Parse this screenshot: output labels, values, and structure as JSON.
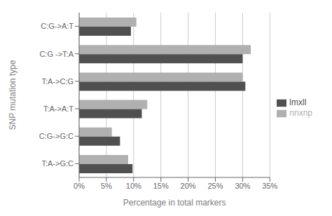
{
  "chart_data": {
    "type": "bar",
    "orientation": "horizontal",
    "categories": [
      "C:G->A:T",
      "C:G ->T:A",
      "T:A->C:G",
      "T:A->A:T",
      "C:G->G:C",
      "T:A->G:C"
    ],
    "series": [
      {
        "name": "nnxnp",
        "color": "#b0b0b0",
        "values": [
          10.5,
          31.5,
          30.0,
          12.5,
          6.0,
          9.0
        ]
      },
      {
        "name": "lmxll",
        "color": "#505050",
        "values": [
          9.5,
          30.0,
          30.5,
          11.5,
          7.5,
          9.8
        ]
      }
    ],
    "xlabel": "Percentage in total markers",
    "ylabel": "SNP mutation type",
    "xlim": [
      0,
      35
    ],
    "xticks": [
      {
        "value": 0,
        "label": "0%"
      },
      {
        "value": 5,
        "label": "5%"
      },
      {
        "value": 10,
        "label": "10%"
      },
      {
        "value": 15,
        "label": "15%"
      },
      {
        "value": 20,
        "label": "20%"
      },
      {
        "value": 25,
        "label": "25%"
      },
      {
        "value": 30,
        "label": "30%"
      },
      {
        "value": 35,
        "label": "35%"
      }
    ],
    "grid": true,
    "legend": "right"
  }
}
